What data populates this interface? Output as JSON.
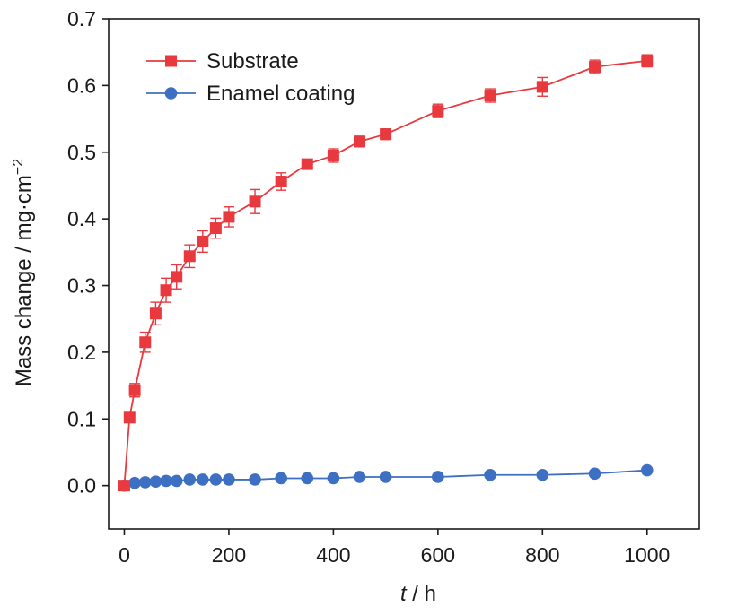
{
  "chart_data": {
    "type": "line",
    "title": "",
    "xlabel": {
      "var": "t",
      "sep": " / ",
      "unit": "h"
    },
    "ylabel": {
      "text": "Mass change / mg·cm",
      "sup": "−2"
    },
    "xlim": [
      -30,
      1100
    ],
    "ylim": [
      -0.065,
      0.7
    ],
    "xticks": [
      0,
      200,
      400,
      600,
      800,
      1000
    ],
    "xtick_labels": [
      "0",
      "200",
      "400",
      "600",
      "800",
      "1000"
    ],
    "yticks": [
      0.0,
      0.1,
      0.2,
      0.3,
      0.4,
      0.5,
      0.6,
      0.7
    ],
    "ytick_labels": [
      "0.0",
      "0.1",
      "0.2",
      "0.3",
      "0.4",
      "0.5",
      "0.6",
      "0.7"
    ],
    "grid": false,
    "legend_position": "top-left",
    "series": [
      {
        "name": "Substrate",
        "color": "#e8393f",
        "marker": "square",
        "x": [
          0,
          10,
          20,
          40,
          60,
          80,
          100,
          125,
          150,
          175,
          200,
          250,
          300,
          350,
          400,
          450,
          500,
          600,
          700,
          800,
          900,
          1000
        ],
        "y": [
          0.0,
          0.102,
          0.143,
          0.215,
          0.258,
          0.293,
          0.313,
          0.344,
          0.366,
          0.386,
          0.403,
          0.426,
          0.456,
          0.482,
          0.495,
          0.516,
          0.527,
          0.562,
          0.585,
          0.598,
          0.628,
          0.637
        ],
        "err": [
          0.0,
          0.005,
          0.01,
          0.015,
          0.017,
          0.018,
          0.018,
          0.017,
          0.016,
          0.015,
          0.015,
          0.018,
          0.013,
          0.007,
          0.01,
          0.008,
          0.008,
          0.01,
          0.01,
          0.014,
          0.01,
          0.009
        ]
      },
      {
        "name": "Enamel coating",
        "color": "#3d6fc2",
        "marker": "circle",
        "x": [
          0,
          20,
          40,
          60,
          80,
          100,
          125,
          150,
          175,
          200,
          250,
          300,
          350,
          400,
          450,
          500,
          600,
          700,
          800,
          900,
          1000
        ],
        "y": [
          0.0,
          0.004,
          0.005,
          0.006,
          0.007,
          0.007,
          0.009,
          0.009,
          0.009,
          0.009,
          0.009,
          0.011,
          0.011,
          0.011,
          0.013,
          0.013,
          0.013,
          0.016,
          0.016,
          0.018,
          0.023
        ]
      }
    ]
  }
}
